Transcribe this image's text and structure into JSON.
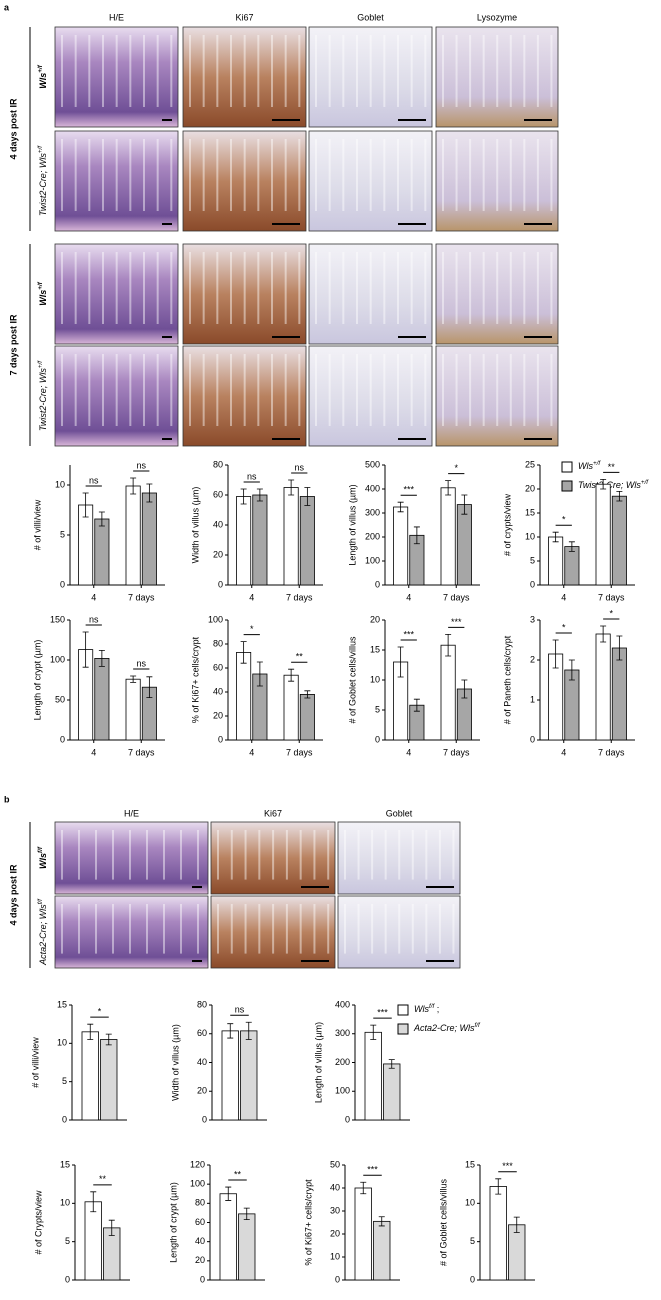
{
  "figure": {
    "panels": [
      {
        "label": "a",
        "columns": [
          "H/E",
          "Ki67",
          "Goblet",
          "Lysozyme"
        ],
        "groups": [
          {
            "time": "4 days post IR",
            "genotypes": [
              {
                "name": "Wls",
                "sup": "+/f"
              },
              {
                "name": "Twist2-Cre; Wls",
                "sup": "+/f"
              }
            ]
          },
          {
            "time": "7 days post IR",
            "genotypes": [
              {
                "name": "Wls",
                "sup": "+/f"
              },
              {
                "name": "Twist2-Cre; Wls",
                "sup": "+/f"
              }
            ]
          }
        ],
        "legend": [
          {
            "name": "Wls",
            "sup": "+/f",
            "color": "#ffffff"
          },
          {
            "name": "Twist2-Cre; Wls",
            "sup": "+/f",
            "color": "#a6a6a6"
          }
        ]
      },
      {
        "label": "b",
        "columns": [
          "H/E",
          "Ki67",
          "Goblet"
        ],
        "groups": [
          {
            "time": "4 days post IR",
            "genotypes": [
              {
                "name": "Wls",
                "sup": "f/f"
              },
              {
                "name": "Acta2-Cre; Wls",
                "sup": "f/f"
              }
            ]
          }
        ],
        "legend": [
          {
            "name": "Wls",
            "sup": "f/f",
            "tail": " ;",
            "color": "#ffffff"
          },
          {
            "name": "Acta2-Cre; Wls",
            "sup": "f/f",
            "color": "#d9d9d9"
          }
        ]
      }
    ]
  },
  "chart_data": [
    {
      "type": "bar",
      "panel": 0,
      "ylabel": "# of villi/view",
      "categories": [
        "4",
        "7 days"
      ],
      "ylim": [
        0,
        12
      ],
      "yticks": [
        0,
        5,
        10
      ],
      "series": [
        {
          "values": [
            8.0,
            9.9
          ],
          "errors": [
            1.2,
            0.8
          ]
        },
        {
          "values": [
            6.6,
            9.2
          ],
          "errors": [
            0.7,
            0.9
          ]
        }
      ],
      "sig": [
        "ns",
        "ns"
      ]
    },
    {
      "type": "bar",
      "panel": 0,
      "ylabel": "Width of villus (µm)",
      "categories": [
        "4",
        "7 days"
      ],
      "ylim": [
        0,
        80
      ],
      "yticks": [
        0,
        20,
        40,
        60,
        80
      ],
      "series": [
        {
          "values": [
            59,
            65
          ],
          "errors": [
            5,
            5
          ]
        },
        {
          "values": [
            60,
            59
          ],
          "errors": [
            4,
            6
          ]
        }
      ],
      "sig": [
        "ns",
        "ns"
      ]
    },
    {
      "type": "bar",
      "panel": 0,
      "ylabel": "Length of villus (µm)",
      "categories": [
        "4",
        "7 days"
      ],
      "ylim": [
        0,
        500
      ],
      "yticks": [
        0,
        100,
        200,
        300,
        400,
        500
      ],
      "series": [
        {
          "values": [
            325,
            405
          ],
          "errors": [
            20,
            30
          ]
        },
        {
          "values": [
            207,
            335
          ],
          "errors": [
            35,
            40
          ]
        }
      ],
      "sig": [
        "***",
        "*"
      ]
    },
    {
      "type": "bar",
      "panel": 0,
      "ylabel": "# of crypts/view",
      "categories": [
        "4",
        "7 days"
      ],
      "ylim": [
        0,
        25
      ],
      "yticks": [
        0,
        5,
        10,
        15,
        20,
        25
      ],
      "series": [
        {
          "values": [
            10,
            21
          ],
          "errors": [
            1,
            1
          ]
        },
        {
          "values": [
            8,
            18.5
          ],
          "errors": [
            1,
            1
          ]
        }
      ],
      "sig": [
        "*",
        "**"
      ]
    },
    {
      "type": "bar",
      "panel": 0,
      "ylabel": "Length of crypt (µm)",
      "categories": [
        "4",
        "7 days"
      ],
      "ylim": [
        0,
        150
      ],
      "yticks": [
        0,
        50,
        100,
        150
      ],
      "series": [
        {
          "values": [
            113,
            76
          ],
          "errors": [
            22,
            4
          ]
        },
        {
          "values": [
            102,
            66
          ],
          "errors": [
            10,
            13
          ]
        }
      ],
      "sig": [
        "ns",
        "ns"
      ]
    },
    {
      "type": "bar",
      "panel": 0,
      "ylabel": "% of Ki67+ cells/crypt",
      "categories": [
        "4",
        "7 days"
      ],
      "ylim": [
        0,
        100
      ],
      "yticks": [
        0,
        20,
        40,
        60,
        80,
        100
      ],
      "series": [
        {
          "values": [
            73,
            54
          ],
          "errors": [
            9,
            5
          ]
        },
        {
          "values": [
            55,
            38
          ],
          "errors": [
            10,
            3
          ]
        }
      ],
      "sig": [
        "*",
        "**"
      ]
    },
    {
      "type": "bar",
      "panel": 0,
      "ylabel": "# of Goblet cells/villus",
      "categories": [
        "4",
        "7 days"
      ],
      "ylim": [
        0,
        20
      ],
      "yticks": [
        0,
        5,
        10,
        15,
        20
      ],
      "series": [
        {
          "values": [
            13,
            15.8
          ],
          "errors": [
            2.5,
            1.8
          ]
        },
        {
          "values": [
            5.8,
            8.5
          ],
          "errors": [
            1,
            1.5
          ]
        }
      ],
      "sig": [
        "***",
        "***"
      ]
    },
    {
      "type": "bar",
      "panel": 0,
      "ylabel": "# of Paneth cells/crypt",
      "categories": [
        "4",
        "7 days"
      ],
      "ylim": [
        0,
        3
      ],
      "yticks": [
        0,
        1,
        2,
        3
      ],
      "series": [
        {
          "values": [
            2.15,
            2.65
          ],
          "errors": [
            0.35,
            0.2
          ]
        },
        {
          "values": [
            1.75,
            2.3
          ],
          "errors": [
            0.25,
            0.3
          ]
        }
      ],
      "sig": [
        "*",
        "*"
      ]
    },
    {
      "type": "bar",
      "panel": 1,
      "ylabel": "# of villi/view",
      "ylim": [
        0,
        15
      ],
      "yticks": [
        0,
        5,
        10,
        15
      ],
      "series": [
        {
          "values": [
            11.5
          ],
          "errors": [
            1
          ]
        },
        {
          "values": [
            10.5
          ],
          "errors": [
            0.7
          ]
        }
      ],
      "sig": [
        "*"
      ]
    },
    {
      "type": "bar",
      "panel": 1,
      "ylabel": "Width of villus (µm)",
      "ylim": [
        0,
        80
      ],
      "yticks": [
        0,
        20,
        40,
        60,
        80
      ],
      "series": [
        {
          "values": [
            62
          ],
          "errors": [
            5
          ]
        },
        {
          "values": [
            62
          ],
          "errors": [
            6
          ]
        }
      ],
      "sig": [
        "ns"
      ]
    },
    {
      "type": "bar",
      "panel": 1,
      "ylabel": "Length of villus (µm)",
      "ylim": [
        0,
        400
      ],
      "yticks": [
        0,
        100,
        200,
        300,
        400
      ],
      "series": [
        {
          "values": [
            305
          ],
          "errors": [
            25
          ]
        },
        {
          "values": [
            195
          ],
          "errors": [
            15
          ]
        }
      ],
      "sig": [
        "***"
      ]
    },
    {
      "type": "bar",
      "panel": 1,
      "ylabel": "# of Crypts/view",
      "ylim": [
        0,
        15
      ],
      "yticks": [
        0,
        5,
        10,
        15
      ],
      "series": [
        {
          "values": [
            10.2
          ],
          "errors": [
            1.3
          ]
        },
        {
          "values": [
            6.8
          ],
          "errors": [
            1
          ]
        }
      ],
      "sig": [
        "**"
      ]
    },
    {
      "type": "bar",
      "panel": 1,
      "ylabel": "Length of crypt (µm)",
      "ylim": [
        0,
        120
      ],
      "yticks": [
        0,
        20,
        40,
        60,
        80,
        100,
        120
      ],
      "series": [
        {
          "values": [
            90
          ],
          "errors": [
            7
          ]
        },
        {
          "values": [
            69
          ],
          "errors": [
            6
          ]
        }
      ],
      "sig": [
        "**"
      ]
    },
    {
      "type": "bar",
      "panel": 1,
      "ylabel": "% of Ki67+ cells/crypt",
      "ylim": [
        0,
        50
      ],
      "yticks": [
        0,
        10,
        20,
        30,
        40,
        50
      ],
      "series": [
        {
          "values": [
            40
          ],
          "errors": [
            2.5
          ]
        },
        {
          "values": [
            25.5
          ],
          "errors": [
            2
          ]
        }
      ],
      "sig": [
        "***"
      ]
    },
    {
      "type": "bar",
      "panel": 1,
      "ylabel": "# of Goblet cells/villus",
      "ylim": [
        0,
        15
      ],
      "yticks": [
        0,
        5,
        10,
        15
      ],
      "series": [
        {
          "values": [
            12.2
          ],
          "errors": [
            1
          ]
        },
        {
          "values": [
            7.2
          ],
          "errors": [
            1
          ]
        }
      ],
      "sig": [
        "***"
      ]
    }
  ]
}
